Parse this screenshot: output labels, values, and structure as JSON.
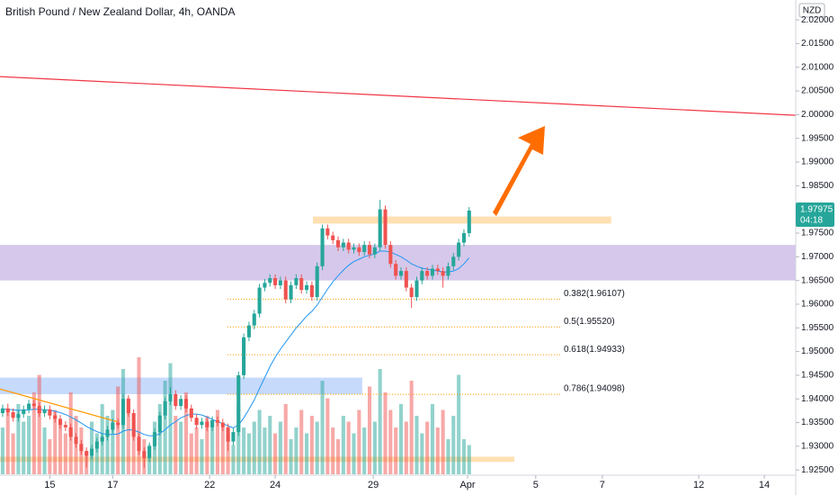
{
  "chart_data": {
    "type": "candlestick",
    "title": "British Pound / New Zealand Dollar, 4h, OANDA",
    "currency": "NZD",
    "countdown": "04:18",
    "up_color": "#26a69a",
    "down_color": "#ef5350",
    "ma_color": "#2196f3",
    "open": [
      1.937,
      1.938,
      1.9372,
      1.936,
      1.9368,
      1.9378,
      1.939,
      1.9385,
      1.937,
      1.9378,
      1.9365,
      1.9358,
      1.9345,
      1.934,
      1.932,
      1.9305,
      1.929,
      1.928,
      1.9295,
      1.931,
      1.932,
      1.9335,
      1.935,
      1.9345,
      1.94,
      1.937,
      1.932,
      1.929,
      1.9275,
      1.93,
      1.933,
      1.9365,
      1.9395,
      1.941,
      1.9385,
      1.94,
      1.938,
      1.936,
      1.9345,
      1.9352,
      1.934,
      1.9355,
      1.935,
      1.934,
      1.931,
      1.933,
      1.945,
      1.953,
      1.9555,
      1.958,
      1.9635,
      1.9645,
      1.9655,
      1.964,
      1.965,
      1.961,
      1.964,
      1.9655,
      1.963,
      1.964,
      1.9615,
      1.968,
      1.976,
      1.9745,
      1.9735,
      1.972,
      1.973,
      1.9715,
      1.972,
      1.971,
      1.9725,
      1.9705,
      1.972,
      1.98,
      1.9725,
      1.9685,
      1.966,
      1.967,
      1.9635,
      1.9615,
      1.965,
      1.967,
      1.966,
      1.9675,
      1.967,
      1.966,
      1.968,
      1.97,
      1.973,
      1.975
    ],
    "high": [
      1.9388,
      1.939,
      1.938,
      1.9376,
      1.9386,
      1.9398,
      1.9398,
      1.9393,
      1.9386,
      1.9386,
      1.9373,
      1.9366,
      1.9353,
      1.9348,
      1.9328,
      1.9313,
      1.9298,
      1.9303,
      1.9318,
      1.9328,
      1.9343,
      1.9358,
      1.9358,
      1.941,
      1.9408,
      1.9378,
      1.9328,
      1.9298,
      1.9308,
      1.9338,
      1.9373,
      1.9403,
      1.9425,
      1.9418,
      1.9408,
      1.9408,
      1.9388,
      1.9368,
      1.936,
      1.936,
      1.9363,
      1.9363,
      1.9358,
      1.9348,
      1.9338,
      1.9458,
      1.9538,
      1.9563,
      1.9588,
      1.9643,
      1.9653,
      1.9663,
      1.9663,
      1.9658,
      1.9658,
      1.9648,
      1.9663,
      1.9663,
      1.9648,
      1.9648,
      1.9688,
      1.9768,
      1.9768,
      1.9753,
      1.9743,
      1.9738,
      1.9738,
      1.9728,
      1.9728,
      1.9733,
      1.9733,
      1.9728,
      1.982,
      1.9808,
      1.9733,
      1.9693,
      1.9678,
      1.9678,
      1.9643,
      1.9658,
      1.9678,
      1.9678,
      1.9683,
      1.9683,
      1.9678,
      1.9688,
      1.9708,
      1.9738,
      1.9758,
      1.9805
    ],
    "low": [
      1.9362,
      1.9364,
      1.9352,
      1.9352,
      1.936,
      1.937,
      1.9377,
      1.9362,
      1.9362,
      1.9357,
      1.935,
      1.9337,
      1.9332,
      1.9312,
      1.9297,
      1.9282,
      1.9255,
      1.9272,
      1.9287,
      1.9302,
      1.9312,
      1.9327,
      1.9337,
      1.9337,
      1.9362,
      1.9312,
      1.9282,
      1.9255,
      1.9267,
      1.9292,
      1.9322,
      1.9357,
      1.9387,
      1.9377,
      1.9377,
      1.9372,
      1.9352,
      1.9337,
      1.9337,
      1.9332,
      1.9332,
      1.9342,
      1.9332,
      1.929,
      1.9302,
      1.9322,
      1.9442,
      1.9522,
      1.9547,
      1.9572,
      1.9627,
      1.9637,
      1.9632,
      1.9632,
      1.9602,
      1.9602,
      1.9632,
      1.9622,
      1.9622,
      1.9607,
      1.9607,
      1.9672,
      1.9737,
      1.9727,
      1.9712,
      1.9712,
      1.9707,
      1.9707,
      1.9702,
      1.9702,
      1.9697,
      1.9697,
      1.9712,
      1.9717,
      1.9677,
      1.9652,
      1.9652,
      1.9627,
      1.9592,
      1.9607,
      1.9642,
      1.9652,
      1.9652,
      1.9662,
      1.9635,
      1.9652,
      1.9672,
      1.9692,
      1.9722,
      1.9742
    ],
    "close": [
      1.938,
      1.9372,
      1.936,
      1.9368,
      1.9378,
      1.939,
      1.9385,
      1.937,
      1.9378,
      1.9365,
      1.9358,
      1.9345,
      1.934,
      1.932,
      1.9305,
      1.929,
      1.928,
      1.9295,
      1.931,
      1.932,
      1.9335,
      1.935,
      1.9345,
      1.94,
      1.937,
      1.932,
      1.929,
      1.9275,
      1.93,
      1.933,
      1.9365,
      1.9395,
      1.941,
      1.9385,
      1.94,
      1.938,
      1.936,
      1.9345,
      1.9352,
      1.934,
      1.9355,
      1.935,
      1.934,
      1.931,
      1.933,
      1.945,
      1.953,
      1.9555,
      1.958,
      1.9635,
      1.9645,
      1.9655,
      1.964,
      1.965,
      1.961,
      1.964,
      1.9655,
      1.963,
      1.964,
      1.9615,
      1.968,
      1.976,
      1.9745,
      1.9735,
      1.972,
      1.973,
      1.9715,
      1.972,
      1.971,
      1.9725,
      1.9705,
      1.972,
      1.98,
      1.9725,
      1.9685,
      1.966,
      1.967,
      1.9635,
      1.9615,
      1.965,
      1.967,
      1.966,
      1.9675,
      1.967,
      1.966,
      1.968,
      1.97,
      1.973,
      1.975,
      1.97975
    ],
    "volume": [
      40,
      55,
      35,
      60,
      45,
      50,
      70,
      85,
      40,
      30,
      55,
      45,
      35,
      70,
      50,
      40,
      20,
      45,
      35,
      60,
      50,
      55,
      75,
      90,
      65,
      40,
      100,
      30,
      25,
      45,
      60,
      80,
      95,
      50,
      45,
      70,
      35,
      40,
      30,
      50,
      45,
      55,
      40,
      35,
      25,
      60,
      40,
      35,
      45,
      55,
      40,
      50,
      35,
      45,
      60,
      30,
      40,
      55,
      35,
      50,
      45,
      80,
      65,
      40,
      30,
      50,
      45,
      35,
      55,
      40,
      75,
      45,
      90,
      70,
      55,
      40,
      60,
      45,
      80,
      50,
      35,
      45,
      60,
      40,
      55,
      30,
      50,
      85,
      30,
      25
    ],
    "ma": [
      1.9378,
      1.9378,
      1.9377,
      1.9376,
      1.9376,
      1.9377,
      1.9378,
      1.9378,
      1.9377,
      1.9376,
      1.9374,
      1.9371,
      1.9367,
      1.9362,
      1.9356,
      1.9349,
      1.9342,
      1.9336,
      1.9331,
      1.9327,
      1.9325,
      1.9325,
      1.9326,
      1.9332,
      1.9335,
      1.9334,
      1.933,
      1.9325,
      1.9322,
      1.9322,
      1.9327,
      1.9335,
      1.9345,
      1.9352,
      1.936,
      1.9365,
      1.9368,
      1.9368,
      1.9366,
      1.9362,
      1.9357,
      1.9352,
      1.9348,
      1.9343,
      1.9339,
      1.9345,
      1.936,
      1.9378,
      1.9398,
      1.9422,
      1.9445,
      1.9468,
      1.9488,
      1.9505,
      1.952,
      1.9535,
      1.955,
      1.9562,
      1.9575,
      1.9585,
      1.9598,
      1.9615,
      1.9632,
      1.9647,
      1.966,
      1.9672,
      1.9682,
      1.969,
      1.9695,
      1.97,
      1.9703,
      1.9706,
      1.9712,
      1.9712,
      1.971,
      1.9705,
      1.97,
      1.9693,
      1.9685,
      1.968,
      1.9676,
      1.9674,
      1.9672,
      1.967,
      1.9668,
      1.9668,
      1.967,
      1.9675,
      1.9685,
      1.9698
    ],
    "xlim": [
      -0.5,
      151.3
    ],
    "xticks": [
      {
        "value": 9,
        "label": "15"
      },
      {
        "value": 21,
        "label": "17"
      },
      {
        "value": 39.5,
        "label": "22"
      },
      {
        "value": 52,
        "label": "24"
      },
      {
        "value": 70.7,
        "label": "29"
      },
      {
        "value": 88.7,
        "label": "Apr"
      },
      {
        "value": 101.7,
        "label": "5"
      },
      {
        "value": 114.4,
        "label": "7"
      },
      {
        "value": 132.8,
        "label": "12"
      },
      {
        "value": 145.3,
        "label": "14"
      }
    ],
    "ylim": [
      1.9239,
      2.0242
    ],
    "yticks": [
      {
        "value": 1.925,
        "label": "1.92500"
      },
      {
        "value": 1.93,
        "label": "1.93000"
      },
      {
        "value": 1.935,
        "label": "1.93500"
      },
      {
        "value": 1.94,
        "label": "1.94000"
      },
      {
        "value": 1.945,
        "label": "1.94500"
      },
      {
        "value": 1.95,
        "label": "1.95000"
      },
      {
        "value": 1.955,
        "label": "1.95500"
      },
      {
        "value": 1.96,
        "label": "1.96000"
      },
      {
        "value": 1.965,
        "label": "1.96500"
      },
      {
        "value": 1.97,
        "label": "1.97000"
      },
      {
        "value": 1.975,
        "label": "1.97500"
      },
      {
        "value": 1.985,
        "label": "1.98500"
      },
      {
        "value": 1.99,
        "label": "1.99000"
      },
      {
        "value": 1.995,
        "label": "1.99500"
      },
      {
        "value": 2.0,
        "label": "2.00000"
      },
      {
        "value": 2.005,
        "label": "2.00500"
      },
      {
        "value": 2.01,
        "label": "2.01000"
      },
      {
        "value": 2.015,
        "label": "2.01500"
      },
      {
        "value": 2.02,
        "label": "2.02000"
      }
    ],
    "zones": [
      {
        "from": 1.965,
        "to": 1.9725,
        "start": -0.5,
        "end": 151.3,
        "color": "rgba(149,117,205,0.4)"
      },
      {
        "from": 1.941,
        "to": 1.9445,
        "start": -0.5,
        "end": 68.6,
        "color": "rgba(66,133,244,0.3)"
      },
      {
        "from": 1.977,
        "to": 1.9785,
        "start": 59.2,
        "end": 116.1,
        "color": "rgba(255,152,0,0.3)"
      },
      {
        "from": 1.9267,
        "to": 1.9278,
        "start": -0.5,
        "end": 97.6,
        "color": "rgba(255,152,0,0.3)"
      }
    ],
    "trendlines": [
      {
        "points": [
          [
            -0.5,
            2.00803
          ],
          [
            151.3,
            1.99986
          ]
        ],
        "color": "#f23645"
      },
      {
        "points": [
          [
            -0.5,
            1.9421
          ],
          [
            21.8,
            1.9352
          ]
        ],
        "color": "#ff9800"
      }
    ],
    "fib_start": 42.9,
    "fib_end": 106.7,
    "fib_color": "#ff9800",
    "fib_levels": [
      {
        "price": 1.96107,
        "label": "0.382(1.96107)"
      },
      {
        "price": 1.9552,
        "label": "0.5(1.95520)"
      },
      {
        "price": 1.94933,
        "label": "0.618(1.94933)"
      },
      {
        "price": 1.94098,
        "label": "0.786(1.94098)"
      }
    ]
  }
}
